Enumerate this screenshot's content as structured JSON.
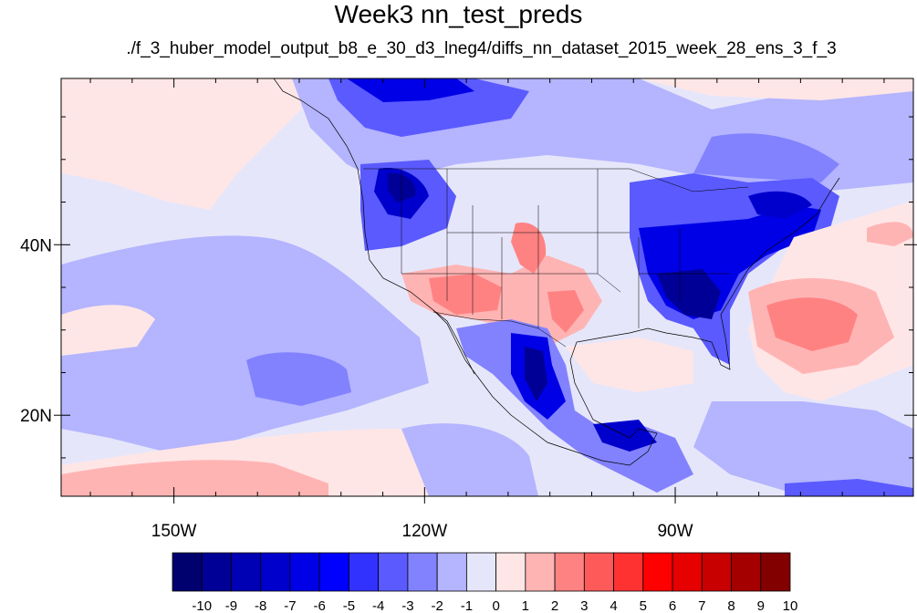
{
  "title": "Week3 nn_test_preds",
  "subtitle": "./f_3_huber_model_output_b8_e_30_d3_lneg4/diffs_nn_dataset_2015_week_28_ens_3_f_3",
  "map": {
    "projection": "lat-lon",
    "lon_range": [
      -163.5,
      -61.5
    ],
    "lat_range": [
      10.5,
      59.5
    ],
    "lat_ticks": [
      {
        "value": 40,
        "label": "40N"
      },
      {
        "value": 20,
        "label": "20N"
      }
    ],
    "lon_ticks": [
      {
        "value": -150,
        "label": "150W"
      },
      {
        "value": -120,
        "label": "120W"
      },
      {
        "value": -90,
        "label": "90W"
      }
    ]
  },
  "colorbar": {
    "labels": [
      "-10",
      "-9",
      "-8",
      "-7",
      "-6",
      "-5",
      "-4",
      "-3",
      "-2",
      "-1",
      "0",
      "1",
      "2",
      "3",
      "4",
      "5",
      "6",
      "7",
      "8",
      "9",
      "10"
    ],
    "colors": [
      "#00006e",
      "#000096",
      "#0000b4",
      "#0000cd",
      "#0000e6",
      "#0000ff",
      "#3232ff",
      "#5a5aff",
      "#8282ff",
      "#b4b4ff",
      "#e6e6fa",
      "#ffe6e6",
      "#ffb4b4",
      "#ff8282",
      "#ff5a5a",
      "#ff3232",
      "#ff0000",
      "#e60000",
      "#c80000",
      "#a50000",
      "#820000"
    ]
  }
}
